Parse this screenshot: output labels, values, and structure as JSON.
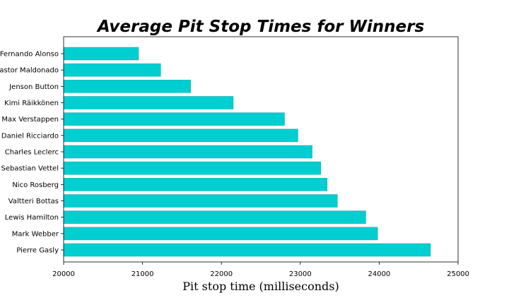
{
  "chart_data": {
    "type": "bar",
    "orientation": "horizontal",
    "title": "Average Pit Stop Times for Winners",
    "xlabel": "Pit stop time (milliseconds)",
    "ylabel": "",
    "xlim": [
      20000,
      25000
    ],
    "xticks": [
      20000,
      21000,
      22000,
      23000,
      24000,
      25000
    ],
    "grid": false,
    "bar_color": "#00CED1",
    "categories": [
      "Fernando Alonso",
      "Pastor Maldonado",
      "Jenson Button",
      "Kimi Räikkönen",
      "Max Verstappen",
      "Daniel Ricciardo",
      "Charles Leclerc",
      "Sebastian Vettel",
      "Nico Rosberg",
      "Valtteri Bottas",
      "Lewis Hamilton",
      "Mark Webber",
      "Pierre Gasly"
    ],
    "values": [
      20950,
      21230,
      21610,
      22150,
      22800,
      22970,
      23150,
      23260,
      23340,
      23470,
      23830,
      23980,
      24650
    ]
  }
}
